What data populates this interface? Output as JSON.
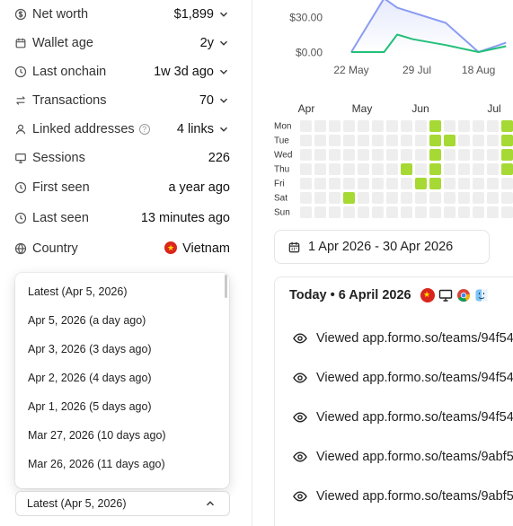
{
  "stats": [
    {
      "icon": "dollar-icon",
      "label": "Net worth",
      "value": "$1,899",
      "chevron": true
    },
    {
      "icon": "calendar-icon",
      "label": "Wallet age",
      "value": "2y",
      "chevron": true
    },
    {
      "icon": "clock-icon",
      "label": "Last onchain",
      "value": "1w 3d ago",
      "chevron": true
    },
    {
      "icon": "transfer-icon",
      "label": "Transactions",
      "value": "70",
      "chevron": true
    },
    {
      "icon": "user-icon",
      "label": "Linked addresses",
      "value": "4 links",
      "chevron": true,
      "help": "?"
    },
    {
      "icon": "monitor-icon",
      "label": "Sessions",
      "value": "226",
      "chevron": false
    },
    {
      "icon": "clock-icon",
      "label": "First seen",
      "value": "a year ago",
      "chevron": false
    },
    {
      "icon": "clock-icon",
      "label": "Last seen",
      "value": "13 minutes ago",
      "chevron": false
    },
    {
      "icon": "globe-icon",
      "label": "Country",
      "value": "Vietnam",
      "chevron": false
    }
  ],
  "dropdown": {
    "options": [
      "Latest (Apr 5, 2026)",
      "Apr 5, 2026 (a day ago)",
      "Apr 3, 2026 (3 days ago)",
      "Apr 2, 2026 (4 days ago)",
      "Apr 1, 2026 (5 days ago)",
      "Mar 27, 2026 (10 days ago)",
      "Mar 26, 2026 (11 days ago)"
    ],
    "selected": "Latest (Apr 5, 2026)"
  },
  "chart_data": {
    "type": "line",
    "ytick_labels": [
      "$30.00",
      "$0.00"
    ],
    "xtick_labels": [
      "22 May",
      "29 Jul",
      "18 Aug"
    ],
    "ylim": [
      0,
      40
    ],
    "series": [
      {
        "color": "#8a9cf0",
        "points": [
          [
            0,
            0
          ],
          [
            0.25,
            46
          ],
          [
            0.35,
            38
          ],
          [
            0.72,
            25
          ],
          [
            0.97,
            0
          ],
          [
            1.18,
            8
          ]
        ]
      },
      {
        "color": "#22c07a",
        "points": [
          [
            0,
            0
          ],
          [
            0.25,
            0
          ],
          [
            0.35,
            15
          ],
          [
            0.47,
            11
          ],
          [
            0.72,
            6
          ],
          [
            0.97,
            0
          ],
          [
            1.18,
            5
          ]
        ]
      }
    ]
  },
  "heatmap": {
    "months": [
      "Apr",
      "May",
      "Jun",
      "Jul"
    ],
    "days": [
      "Mon",
      "Tue",
      "Wed",
      "Thu",
      "Fri",
      "Sat",
      "Sun"
    ],
    "active": [
      [
        9,
        0
      ],
      [
        14,
        0
      ],
      [
        15,
        0
      ],
      [
        9,
        1
      ],
      [
        10,
        1
      ],
      [
        14,
        1
      ],
      [
        9,
        2
      ],
      [
        14,
        2
      ],
      [
        15,
        2
      ],
      [
        7,
        3
      ],
      [
        9,
        3
      ],
      [
        14,
        3
      ],
      [
        15,
        3
      ],
      [
        8,
        4
      ],
      [
        9,
        4
      ],
      [
        15,
        4
      ],
      [
        3,
        5
      ]
    ],
    "active_color": "#a6d934",
    "empty_color": "#eeeeee"
  },
  "date_range": "1 Apr 2026 - 30 Apr 2026",
  "activity": {
    "title": "Today • 6 April 2026",
    "events": [
      "Viewed app.formo.so/teams/94f54",
      "Viewed app.formo.so/teams/94f54",
      "Viewed app.formo.so/teams/94f54",
      "Viewed app.formo.so/teams/9abf5",
      "Viewed app.formo.so/teams/9abf5"
    ]
  }
}
